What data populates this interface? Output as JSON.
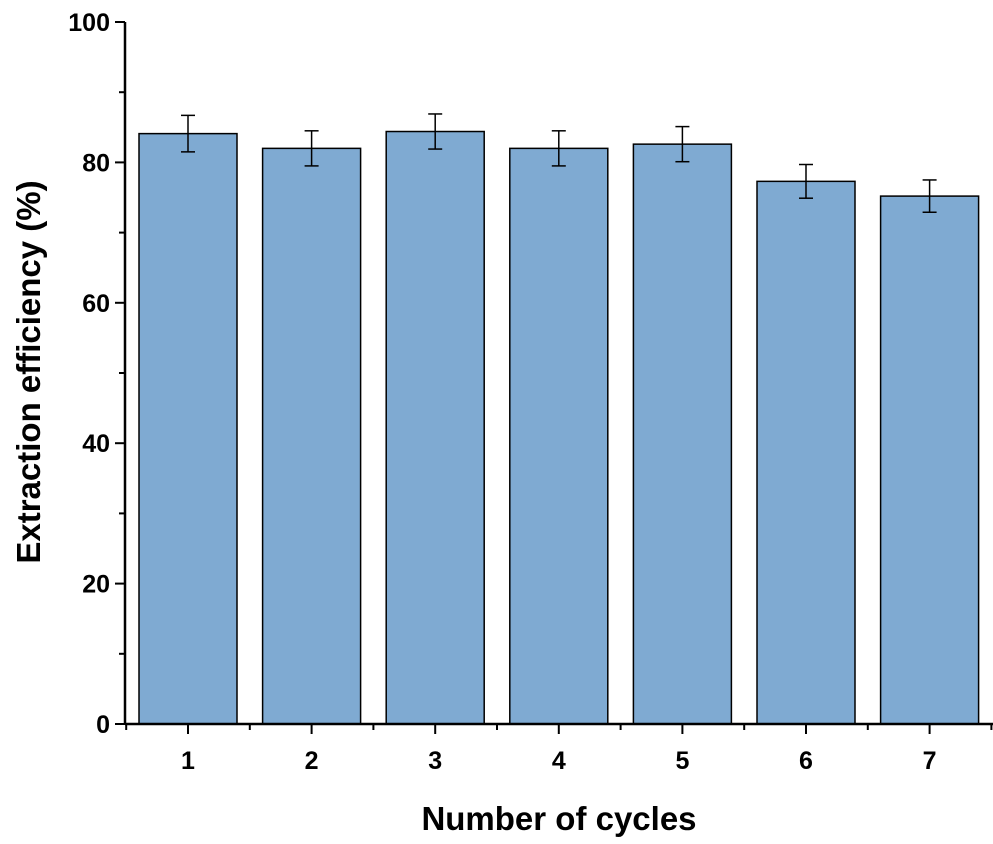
{
  "chart_data": {
    "type": "bar",
    "categories": [
      "1",
      "2",
      "3",
      "4",
      "5",
      "6",
      "7"
    ],
    "values": [
      84.1,
      82.0,
      84.4,
      82.0,
      82.6,
      77.3,
      75.2
    ],
    "error": [
      2.6,
      2.5,
      2.5,
      2.5,
      2.5,
      2.4,
      2.3
    ],
    "xlabel": "Number of cycles",
    "ylabel": "Extraction efficiency (%)",
    "ylim": [
      0,
      100
    ],
    "yticks": [
      0,
      20,
      40,
      60,
      80,
      100
    ],
    "bar_color": "#7faad2",
    "edge_color": "#000000",
    "grid": false,
    "legend": "none"
  }
}
